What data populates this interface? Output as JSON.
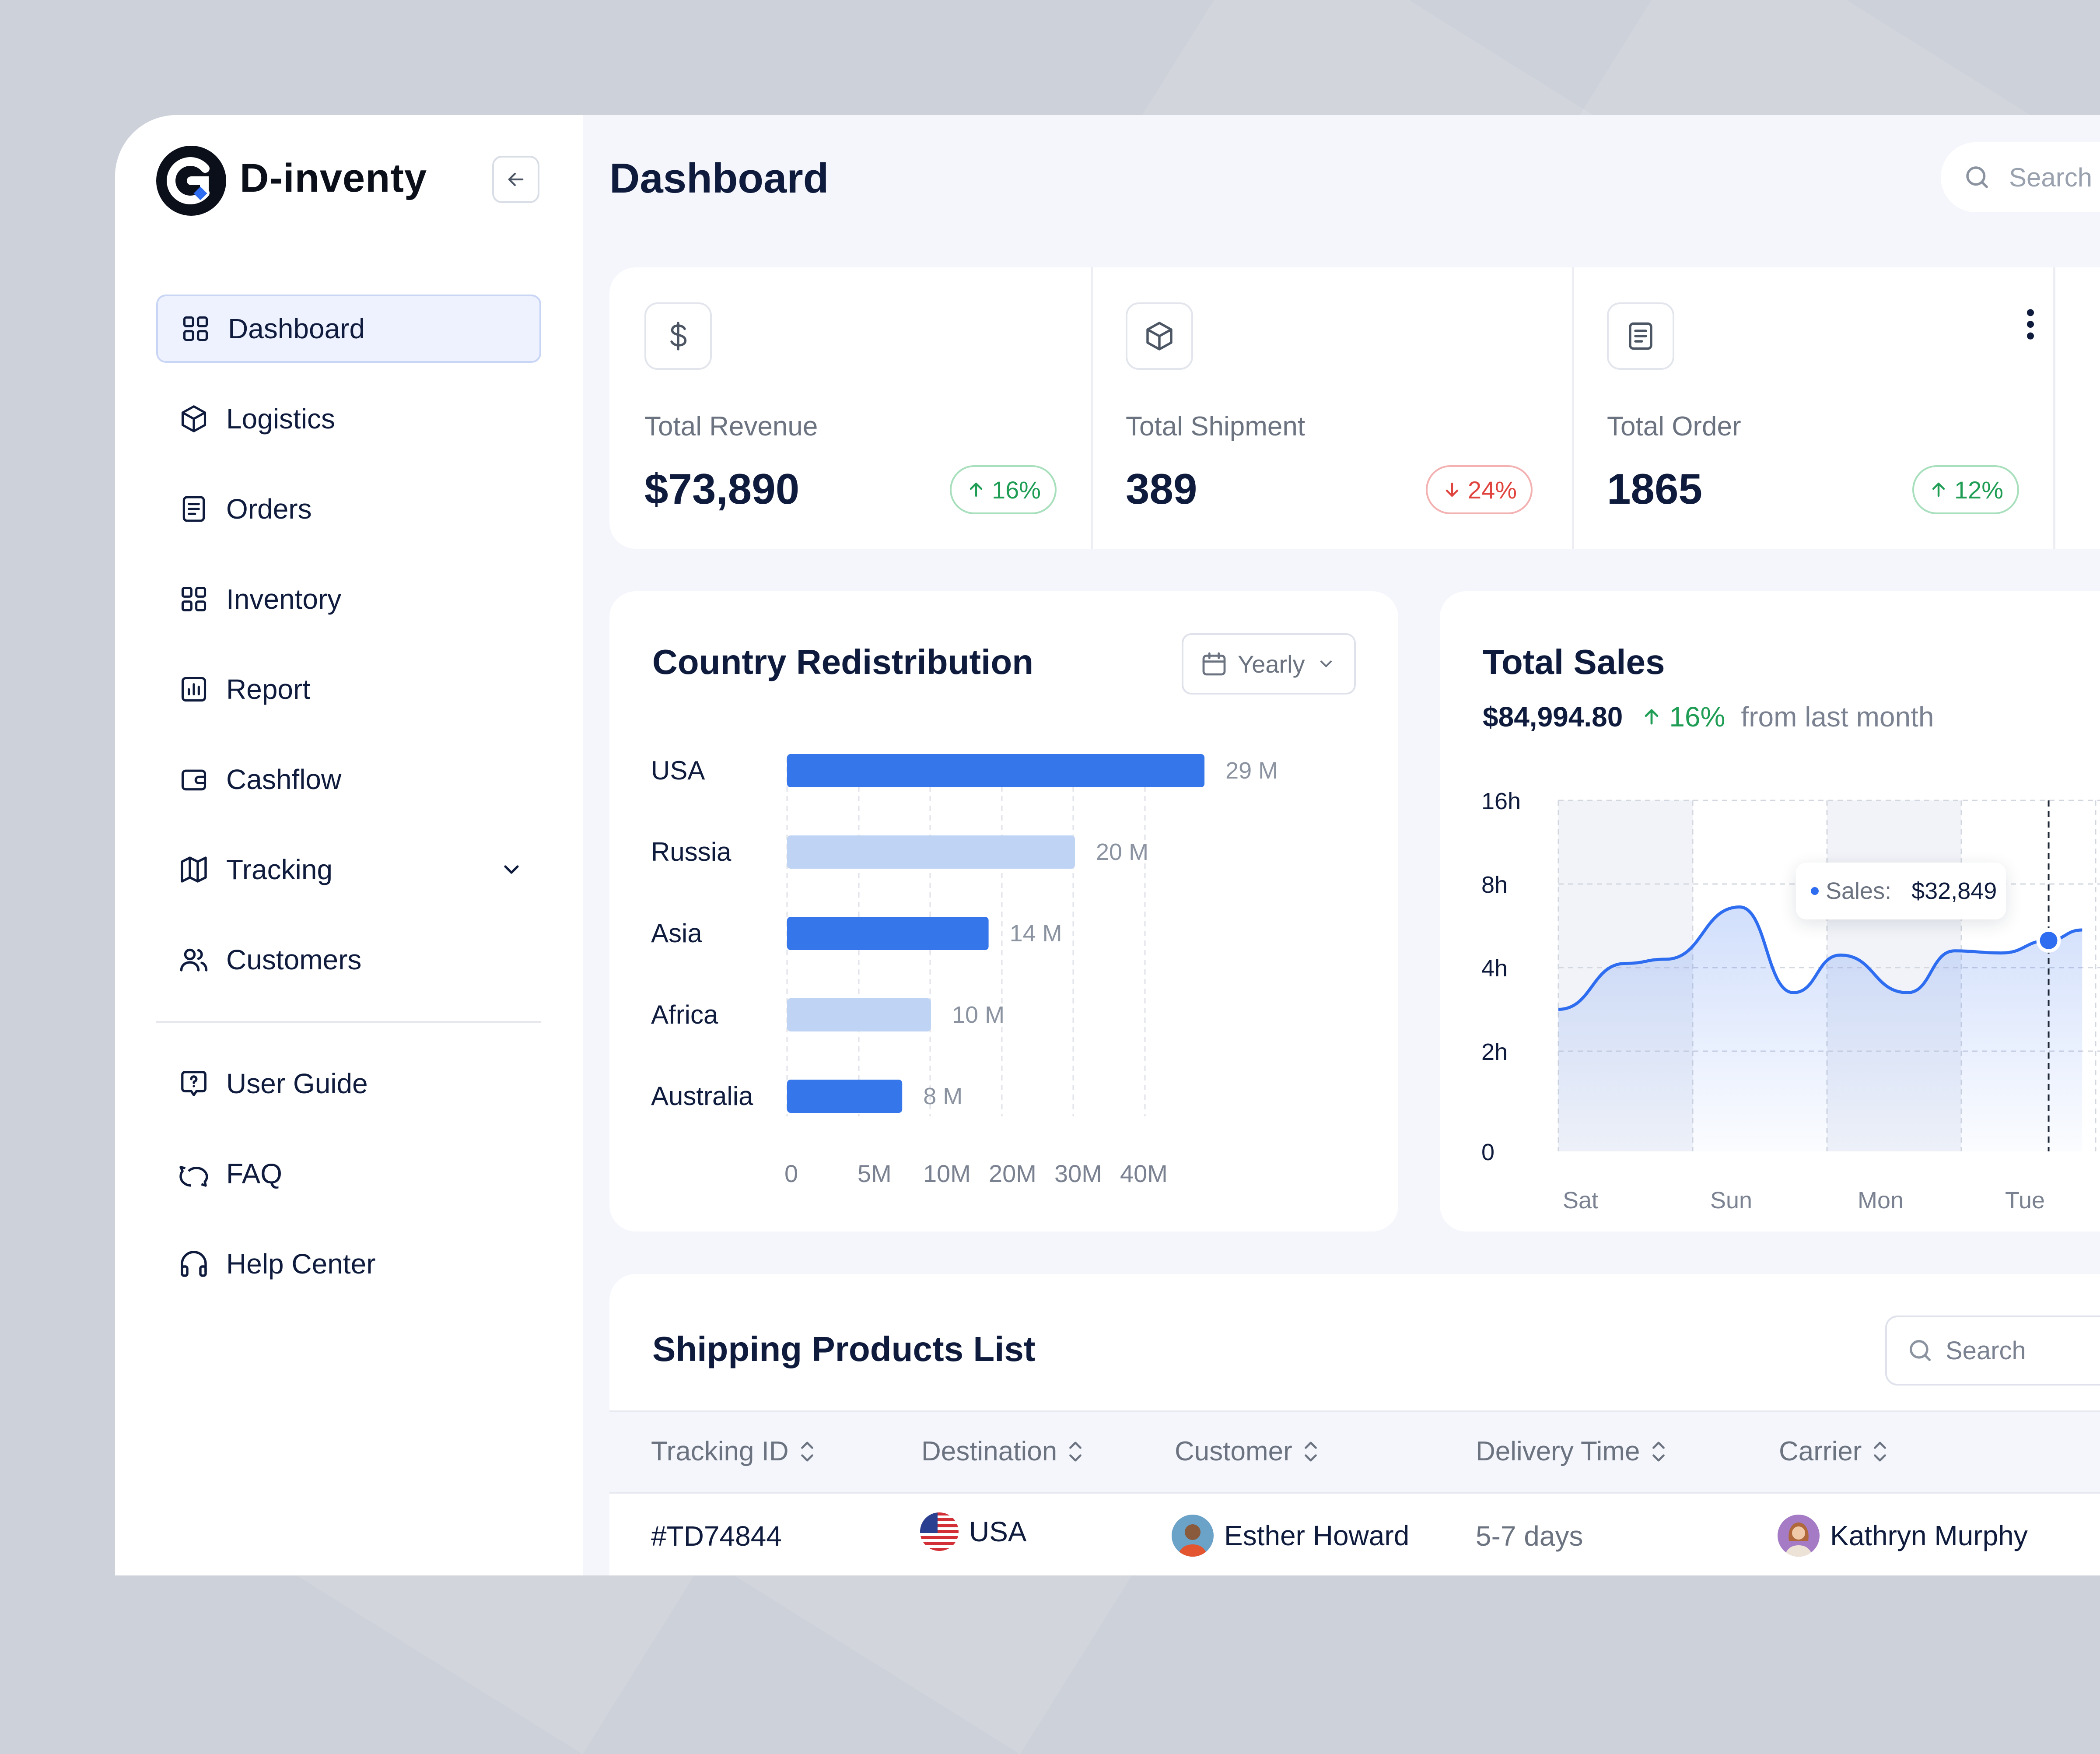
{
  "app": {
    "name": "D-inventy"
  },
  "sidebar": {
    "items": [
      {
        "label": "Dashboard",
        "icon": "grid-icon",
        "active": true
      },
      {
        "label": "Logistics",
        "icon": "box-icon"
      },
      {
        "label": "Orders",
        "icon": "document-icon"
      },
      {
        "label": "Inventory",
        "icon": "grid-icon"
      },
      {
        "label": "Report",
        "icon": "bar-chart-icon"
      },
      {
        "label": "Cashflow",
        "icon": "wallet-icon"
      },
      {
        "label": "Tracking",
        "icon": "map-icon",
        "expandable": true
      },
      {
        "label": "Customers",
        "icon": "users-icon"
      }
    ],
    "bottom_items": [
      {
        "label": "User Guide",
        "icon": "help-message-icon"
      },
      {
        "label": "FAQ",
        "icon": "chat-icon"
      },
      {
        "label": "Help Center",
        "icon": "headphones-icon"
      }
    ]
  },
  "header": {
    "title": "Dashboard",
    "search_placeholder": "Search"
  },
  "stats": [
    {
      "label": "Total Revenue",
      "value": "$73,890",
      "change": "16%",
      "direction": "up",
      "icon": "dollar-icon"
    },
    {
      "label": "Total Shipment",
      "value": "389",
      "change": "24%",
      "direction": "down",
      "icon": "box-icon"
    },
    {
      "label": "Total Order",
      "value": "1865",
      "change": "12%",
      "direction": "up",
      "icon": "document-icon"
    }
  ],
  "country": {
    "title": "Country Redistribution",
    "period": "Yearly"
  },
  "sales": {
    "title": "Total Sales",
    "amount": "$84,994.80",
    "change": "16%",
    "change_note": "from last month",
    "tooltip_label": "Sales:",
    "tooltip_value": "$32,849"
  },
  "chart_data": [
    {
      "type": "bar",
      "orientation": "horizontal",
      "title": "Country Redistribution",
      "categories": [
        "USA",
        "Russia",
        "Asia",
        "Africa",
        "Australia"
      ],
      "values": [
        29,
        20,
        14,
        10,
        8
      ],
      "value_labels": [
        "29 M",
        "20 M",
        "14 M",
        "10 M",
        "8 M"
      ],
      "x_ticks": [
        "0",
        "5M",
        "10M",
        "20M",
        "30M",
        "40M"
      ],
      "colors": [
        "#3576ea",
        "#bfd4f4",
        "#3576ea",
        "#bfd4f4",
        "#3576ea"
      ],
      "grid": true
    },
    {
      "type": "area",
      "title": "Total Sales",
      "x": [
        "Sat",
        "Sun",
        "Mon",
        "Tue"
      ],
      "y_ticks": [
        "16h",
        "8h",
        "4h",
        "2h",
        "0"
      ],
      "y_tick_values": [
        16,
        8,
        4,
        2,
        0
      ],
      "points": [
        [
          0,
          3.0
        ],
        [
          0.5,
          4.2
        ],
        [
          0.8,
          4.4
        ],
        [
          1.35,
          6.9
        ],
        [
          1.75,
          3.4
        ],
        [
          2.1,
          4.6
        ],
        [
          2.6,
          3.4
        ],
        [
          2.95,
          4.8
        ],
        [
          3.3,
          4.7
        ],
        [
          3.65,
          5.3
        ],
        [
          3.9,
          5.8
        ]
      ],
      "highlight": {
        "x": 3.65,
        "y": 5.3,
        "label": "Sales:",
        "value": "$32,849"
      },
      "color": "#2f6df0",
      "grid": true
    }
  ],
  "shipping": {
    "title": "Shipping Products List",
    "search_placeholder": "Search",
    "columns": [
      "Tracking ID",
      "Destination",
      "Customer",
      "Delivery Time",
      "Carrier"
    ],
    "rows": [
      {
        "tracking_id": "#TD74844",
        "destination": "USA",
        "customer": "Esther Howard",
        "delivery_time": "5-7 days",
        "carrier": "Kathryn Murphy"
      }
    ]
  }
}
